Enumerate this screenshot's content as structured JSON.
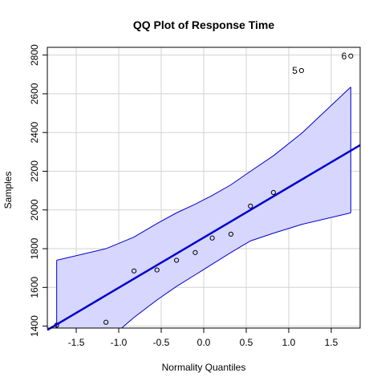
{
  "chart_data": {
    "type": "scatter",
    "title": "QQ Plot of Response Time",
    "xlabel": "Normality Quantiles",
    "ylabel": "Samples",
    "xlim": [
      -1.84,
      1.84
    ],
    "ylim": [
      1390,
      2840
    ],
    "xticks": [
      -1.5,
      -1.0,
      -0.5,
      0.0,
      0.5,
      1.0,
      1.5
    ],
    "xtick_labels": [
      "-1.5",
      "-1.0",
      "-0.5",
      "0.0",
      "0.5",
      "1.0",
      "1.5"
    ],
    "yticks": [
      1400,
      1600,
      1800,
      2000,
      2200,
      2400,
      2600,
      2800
    ],
    "ytick_labels": [
      "1400",
      "1600",
      "1800",
      "2000",
      "2200",
      "2400",
      "2600",
      "2800"
    ],
    "grid": true,
    "points": {
      "x": [
        -1.73,
        -1.15,
        -0.82,
        -0.55,
        -0.32,
        -0.1,
        0.1,
        0.32,
        0.55,
        0.82,
        1.15,
        1.73
      ],
      "y": [
        1405,
        1420,
        1685,
        1690,
        1740,
        1780,
        1855,
        1875,
        2020,
        2090,
        2720,
        2795
      ]
    },
    "point_labels": [
      {
        "label": "5",
        "x": 1.15,
        "y": 2720
      },
      {
        "label": "6",
        "x": 1.73,
        "y": 2795
      }
    ],
    "reference_line": {
      "x": [
        -1.84,
        1.84
      ],
      "y": [
        1380,
        2335
      ]
    },
    "confidence_band": {
      "x": [
        -1.73,
        -1.15,
        -0.82,
        -0.55,
        -0.32,
        -0.1,
        0.1,
        0.32,
        0.55,
        0.82,
        1.15,
        1.73
      ],
      "upper": [
        1740,
        1800,
        1860,
        1930,
        1985,
        2030,
        2075,
        2130,
        2200,
        2280,
        2395,
        2635
      ],
      "lower": [
        1205,
        1320,
        1445,
        1535,
        1605,
        1665,
        1720,
        1780,
        1840,
        1880,
        1925,
        1985
      ]
    },
    "colors": {
      "band_fill": "#d6d6ff",
      "band_edge": "#0000cd",
      "line": "#0000cd",
      "point": "#000000",
      "grid": "#d3d3d3"
    }
  }
}
